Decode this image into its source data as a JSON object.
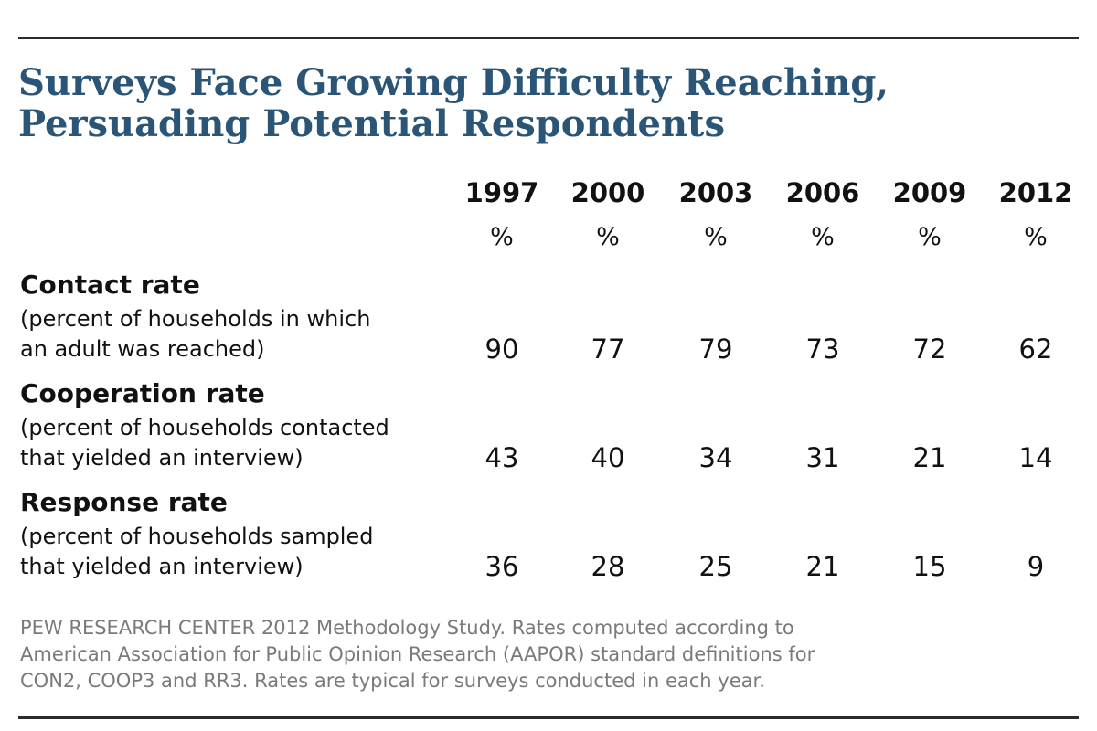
{
  "title": {
    "line1": "Surveys Face Growing Difficulty Reaching,",
    "line2": "Persuading Potential Respondents"
  },
  "unit": "%",
  "chart_data": {
    "type": "table",
    "title": "Surveys Face Growing Difficulty Reaching, Persuading Potential Respondents",
    "columns": [
      "1997",
      "2000",
      "2003",
      "2006",
      "2009",
      "2012"
    ],
    "unit": "%",
    "rows": [
      {
        "label": "Contact rate",
        "desc_line1": "(percent of households in which",
        "desc_line2": "an adult was reached)",
        "values": [
          90,
          77,
          79,
          73,
          72,
          62
        ]
      },
      {
        "label": "Cooperation rate",
        "desc_line1": "(percent of households contacted",
        "desc_line2": "that yielded an interview)",
        "values": [
          43,
          40,
          34,
          31,
          21,
          14
        ]
      },
      {
        "label": "Response rate",
        "desc_line1": "(percent of households sampled",
        "desc_line2": "that yielded an interview)",
        "values": [
          36,
          28,
          25,
          21,
          15,
          9
        ]
      }
    ]
  },
  "source": {
    "line1": "PEW RESEARCH  CENTER 2012 Methodology Study. Rates computed according to",
    "line2": "American Association for Public Opinion Research (AAPOR)  standard definitions for",
    "line3": "CON2, COOP3  and RR3.  Rates are typical for surveys conducted in each year."
  }
}
